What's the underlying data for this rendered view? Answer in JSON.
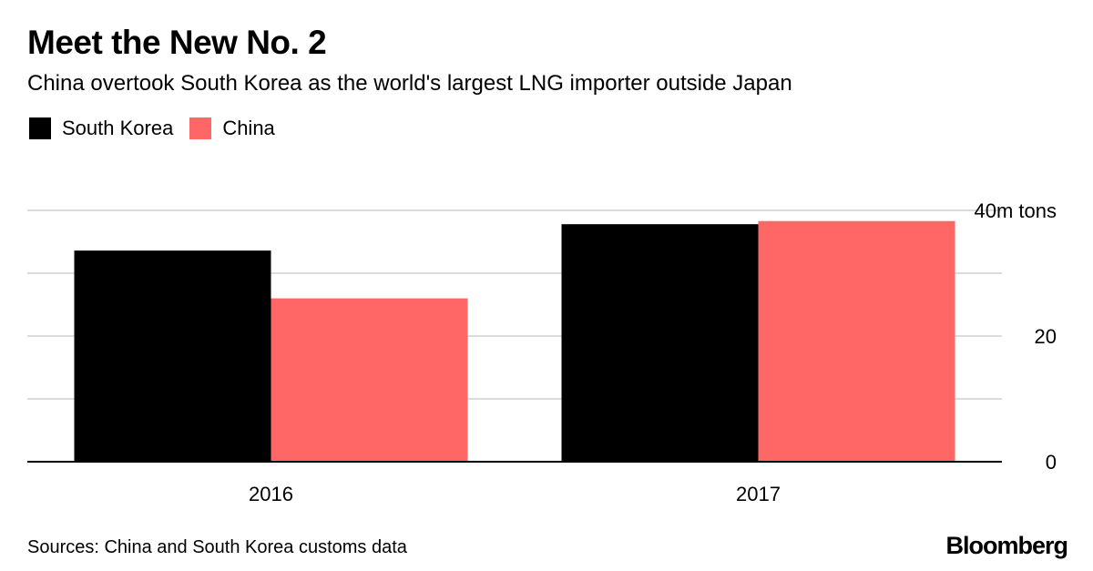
{
  "chart_data": {
    "type": "bar",
    "title": "Meet the New No. 2",
    "subtitle": "China overtook South Korea as the world's largest LNG importer outside Japan",
    "categories": [
      "2016",
      "2017"
    ],
    "series": [
      {
        "name": "South Korea",
        "color": "#000000",
        "values": [
          33.6,
          37.8
        ]
      },
      {
        "name": "China",
        "color": "#ff6666",
        "values": [
          26.0,
          38.3
        ]
      }
    ],
    "y_ticks": [
      {
        "value": 0,
        "label": "0"
      },
      {
        "value": 10,
        "label": ""
      },
      {
        "value": 20,
        "label": "20"
      },
      {
        "value": 30,
        "label": ""
      },
      {
        "value": 40,
        "label": "40m tons"
      }
    ],
    "ylim": [
      0,
      40
    ],
    "xlabel": "",
    "ylabel": "",
    "grid": true,
    "legend_position": "top-left",
    "y_axis_side": "right"
  },
  "footer": {
    "source": "Sources: China and South Korea customs data",
    "brand": "Bloomberg"
  }
}
